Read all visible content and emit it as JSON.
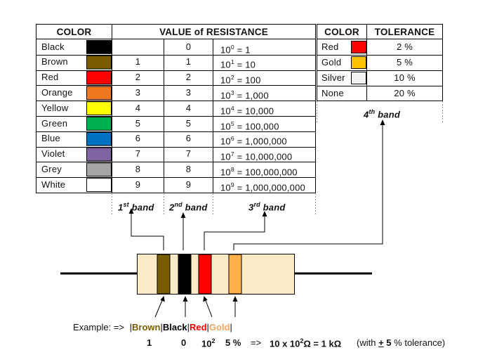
{
  "color_table": {
    "header_color": "COLOR",
    "header_value": "VALUE of RESISTANCE",
    "rows": [
      {
        "name": "Black",
        "swatch": "#000000",
        "d1": "",
        "d2": "0",
        "mult_exp": "0",
        "mult_text": "= 1"
      },
      {
        "name": "Brown",
        "swatch": "#7a5c00",
        "d1": "1",
        "d2": "1",
        "mult_exp": "1",
        "mult_text": "= 10"
      },
      {
        "name": "Red",
        "swatch": "#ff0000",
        "d1": "2",
        "d2": "2",
        "mult_exp": "2",
        "mult_text": "= 100"
      },
      {
        "name": "Orange",
        "swatch": "#f07820",
        "d1": "3",
        "d2": "3",
        "mult_exp": "3",
        "mult_text": "= 1,000"
      },
      {
        "name": "Yellow",
        "swatch": "#ffff00",
        "d1": "4",
        "d2": "4",
        "mult_exp": "4",
        "mult_text": "= 10,000"
      },
      {
        "name": "Green",
        "swatch": "#00b050",
        "d1": "5",
        "d2": "5",
        "mult_exp": "5",
        "mult_text": "= 100,000"
      },
      {
        "name": "Blue",
        "swatch": "#0070c0",
        "d1": "6",
        "d2": "6",
        "mult_exp": "6",
        "mult_text": "= 1,000,000"
      },
      {
        "name": "Violet",
        "swatch": "#8064a2",
        "d1": "7",
        "d2": "7",
        "mult_exp": "7",
        "mult_text": "= 10,000,000"
      },
      {
        "name": "Grey",
        "swatch": "#a6a6a6",
        "d1": "8",
        "d2": "8",
        "mult_exp": "8",
        "mult_text": "= 100,000,000"
      },
      {
        "name": "White",
        "swatch": "#ffffff",
        "d1": "9",
        "d2": "9",
        "mult_exp": "9",
        "mult_text": "= 1,000,000,000"
      }
    ],
    "band_labels": [
      {
        "num": "1",
        "sup": "st",
        "text": "band"
      },
      {
        "num": "2",
        "sup": "nd",
        "text": "band"
      },
      {
        "num": "3",
        "sup": "rd",
        "text": "band"
      }
    ]
  },
  "tolerance_table": {
    "header_color": "COLOR",
    "header_tolerance": "TOLERANCE",
    "rows": [
      {
        "name": "Red",
        "swatch": "#ff0000",
        "tol": "2 %"
      },
      {
        "name": "Gold",
        "swatch": "#ffc000",
        "tol": "5 %"
      },
      {
        "name": "Silver",
        "swatch": "#f2f2f2",
        "tol": "10 %"
      },
      {
        "name": "None",
        "swatch": "",
        "tol": "20 %"
      }
    ],
    "band_label": {
      "num": "4",
      "sup": "th",
      "text": "band"
    }
  },
  "resistor": {
    "body_color": "#fdebc8",
    "bands": [
      "#7a5c00",
      "#000000",
      "#ff0000",
      "#ffb04a"
    ]
  },
  "example": {
    "prefix": "Example: =>",
    "colors": [
      {
        "name": "Brown",
        "color": "#7a5c00"
      },
      {
        "name": "Black",
        "color": "#000000"
      },
      {
        "name": "Red",
        "color": "#ff0000"
      },
      {
        "name": "Gold",
        "color": "#f4a460"
      }
    ],
    "values": [
      "1",
      "0",
      "10",
      "5 %"
    ],
    "values_sup": "2",
    "arrow": "=>",
    "result_pre": "10 x 10",
    "result_sup": "2",
    "result_post": "Ω = 1 kΩ",
    "note_pre": "(with",
    "note_pm": "+",
    "note_bold": "5",
    "note_post": "% tolerance)"
  }
}
